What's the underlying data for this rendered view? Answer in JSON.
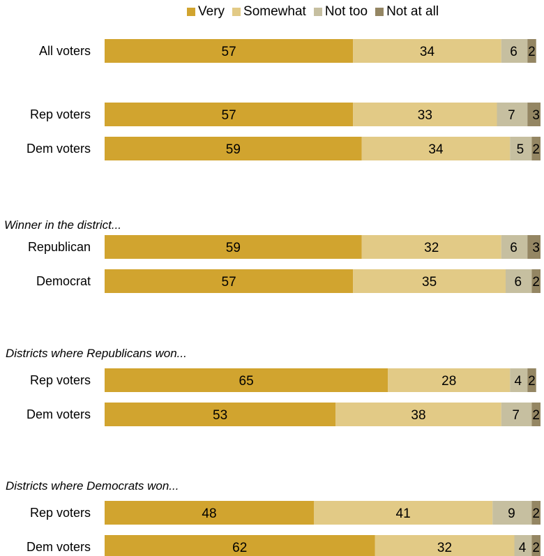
{
  "legend": [
    {
      "label": "Very",
      "color": "#D1A42F"
    },
    {
      "label": "Somewhat",
      "color": "#E2CA86"
    },
    {
      "label": "Not too",
      "color": "#C6BFA0"
    },
    {
      "label": "Not at all",
      "color": "#948663"
    }
  ],
  "chart_data": {
    "type": "bar",
    "orientation": "horizontal",
    "stacked": true,
    "xlim": [
      0,
      100
    ],
    "grid": false,
    "legend_position": "top",
    "series_names": [
      "Very",
      "Somewhat",
      "Not too",
      "Not at all"
    ],
    "groups": [
      {
        "heading": "",
        "rows": [
          {
            "label": "All voters",
            "values": [
              57,
              34,
              6,
              2
            ]
          }
        ]
      },
      {
        "heading": "",
        "rows": [
          {
            "label": "Rep voters",
            "values": [
              57,
              33,
              7,
              3
            ]
          },
          {
            "label": "Dem voters",
            "values": [
              59,
              34,
              5,
              2
            ]
          }
        ]
      },
      {
        "heading": "Winner in the district...",
        "rows": [
          {
            "label": "Republican",
            "values": [
              59,
              32,
              6,
              3
            ]
          },
          {
            "label": "Democrat",
            "values": [
              57,
              35,
              6,
              2
            ]
          }
        ]
      },
      {
        "heading": "Districts where Republicans won...",
        "rows": [
          {
            "label": "Rep voters",
            "values": [
              65,
              28,
              4,
              2
            ]
          },
          {
            "label": "Dem voters",
            "values": [
              53,
              38,
              7,
              2
            ]
          }
        ]
      },
      {
        "heading": "Districts where Democrats won...",
        "rows": [
          {
            "label": "Rep voters",
            "values": [
              48,
              41,
              9,
              2
            ]
          },
          {
            "label": "Dem voters",
            "values": [
              62,
              32,
              4,
              2
            ]
          }
        ]
      }
    ]
  }
}
